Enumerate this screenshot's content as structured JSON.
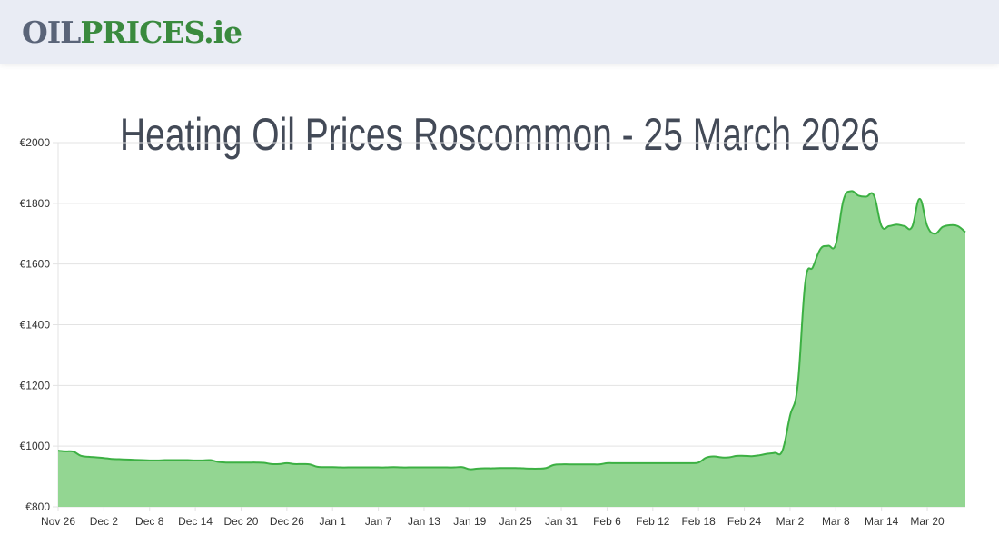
{
  "header": {
    "logo_part1": "OIL",
    "logo_part2": "PRICES",
    "logo_part3": ".ie"
  },
  "page_title": "Heating Oil Prices Roscommon - 25 March 2026",
  "colors": {
    "line": "#3cb043",
    "fill": "#93d692",
    "grid": "#e3e3e3",
    "title": "#434a57"
  },
  "chart_data": {
    "type": "area",
    "title": "",
    "xlabel": "",
    "ylabel": "",
    "ylim": [
      800,
      2000
    ],
    "y_ticks": [
      "€800",
      "€1000",
      "€1200",
      "€1400",
      "€1600",
      "€1800",
      "€2000"
    ],
    "y_tick_values": [
      800,
      1000,
      1200,
      1400,
      1600,
      1800,
      2000
    ],
    "grid": true,
    "x_ticks": [
      "Nov 26",
      "Dec 2",
      "Dec 8",
      "Dec 14",
      "Dec 20",
      "Dec 26",
      "Jan 1",
      "Jan 7",
      "Jan 13",
      "Jan 19",
      "Jan 25",
      "Jan 31",
      "Feb 6",
      "Feb 12",
      "Feb 18",
      "Feb 24",
      "Mar 2",
      "Mar 8",
      "Mar 14",
      "Mar 20"
    ],
    "x": [
      "Nov 26",
      "Nov 27",
      "Nov 28",
      "Nov 29",
      "Nov 30",
      "Dec 1",
      "Dec 2",
      "Dec 3",
      "Dec 4",
      "Dec 5",
      "Dec 6",
      "Dec 7",
      "Dec 8",
      "Dec 9",
      "Dec 10",
      "Dec 11",
      "Dec 12",
      "Dec 13",
      "Dec 14",
      "Dec 15",
      "Dec 16",
      "Dec 17",
      "Dec 18",
      "Dec 19",
      "Dec 20",
      "Dec 21",
      "Dec 22",
      "Dec 23",
      "Dec 24",
      "Dec 25",
      "Dec 26",
      "Dec 27",
      "Dec 28",
      "Dec 29",
      "Dec 30",
      "Dec 31",
      "Jan 1",
      "Jan 2",
      "Jan 3",
      "Jan 4",
      "Jan 5",
      "Jan 6",
      "Jan 7",
      "Jan 8",
      "Jan 9",
      "Jan 10",
      "Jan 11",
      "Jan 12",
      "Jan 13",
      "Jan 14",
      "Jan 15",
      "Jan 16",
      "Jan 17",
      "Jan 18",
      "Jan 19",
      "Jan 20",
      "Jan 21",
      "Jan 22",
      "Jan 23",
      "Jan 24",
      "Jan 25",
      "Jan 26",
      "Jan 27",
      "Jan 28",
      "Jan 29",
      "Jan 30",
      "Jan 31",
      "Feb 1",
      "Feb 2",
      "Feb 3",
      "Feb 4",
      "Feb 5",
      "Feb 6",
      "Feb 7",
      "Feb 8",
      "Feb 9",
      "Feb 10",
      "Feb 11",
      "Feb 12",
      "Feb 13",
      "Feb 14",
      "Feb 15",
      "Feb 16",
      "Feb 17",
      "Feb 18",
      "Feb 19",
      "Feb 20",
      "Feb 21",
      "Feb 22",
      "Feb 23",
      "Feb 24",
      "Feb 25",
      "Feb 26",
      "Feb 27",
      "Feb 28",
      "Mar 1",
      "Mar 2",
      "Mar 3",
      "Mar 4",
      "Mar 5",
      "Mar 6",
      "Mar 7",
      "Mar 8",
      "Mar 9",
      "Mar 10",
      "Mar 11",
      "Mar 12",
      "Mar 13",
      "Mar 14",
      "Mar 15",
      "Mar 16",
      "Mar 17",
      "Mar 18",
      "Mar 19",
      "Mar 20",
      "Mar 21",
      "Mar 22",
      "Mar 23",
      "Mar 24",
      "Mar 25"
    ],
    "values": [
      985,
      983,
      982,
      968,
      965,
      963,
      961,
      958,
      957,
      956,
      955,
      954,
      953,
      953,
      954,
      954,
      954,
      954,
      953,
      953,
      954,
      948,
      946,
      946,
      946,
      946,
      946,
      945,
      941,
      941,
      944,
      941,
      941,
      940,
      932,
      931,
      931,
      930,
      930,
      930,
      930,
      930,
      930,
      930,
      931,
      930,
      930,
      930,
      930,
      930,
      930,
      930,
      930,
      931,
      924,
      926,
      927,
      927,
      928,
      928,
      928,
      927,
      926,
      926,
      928,
      938,
      940,
      940,
      940,
      940,
      940,
      940,
      944,
      944,
      944,
      944,
      944,
      944,
      944,
      944,
      944,
      944,
      944,
      944,
      946,
      962,
      966,
      963,
      963,
      968,
      968,
      967,
      970,
      975,
      978,
      985,
      1100,
      1200,
      1540,
      1590,
      1650,
      1660,
      1665,
      1810,
      1840,
      1825,
      1822,
      1826,
      1725,
      1725,
      1730,
      1725,
      1722,
      1815,
      1725,
      1700,
      1722,
      1728,
      1725,
      1705
    ]
  }
}
